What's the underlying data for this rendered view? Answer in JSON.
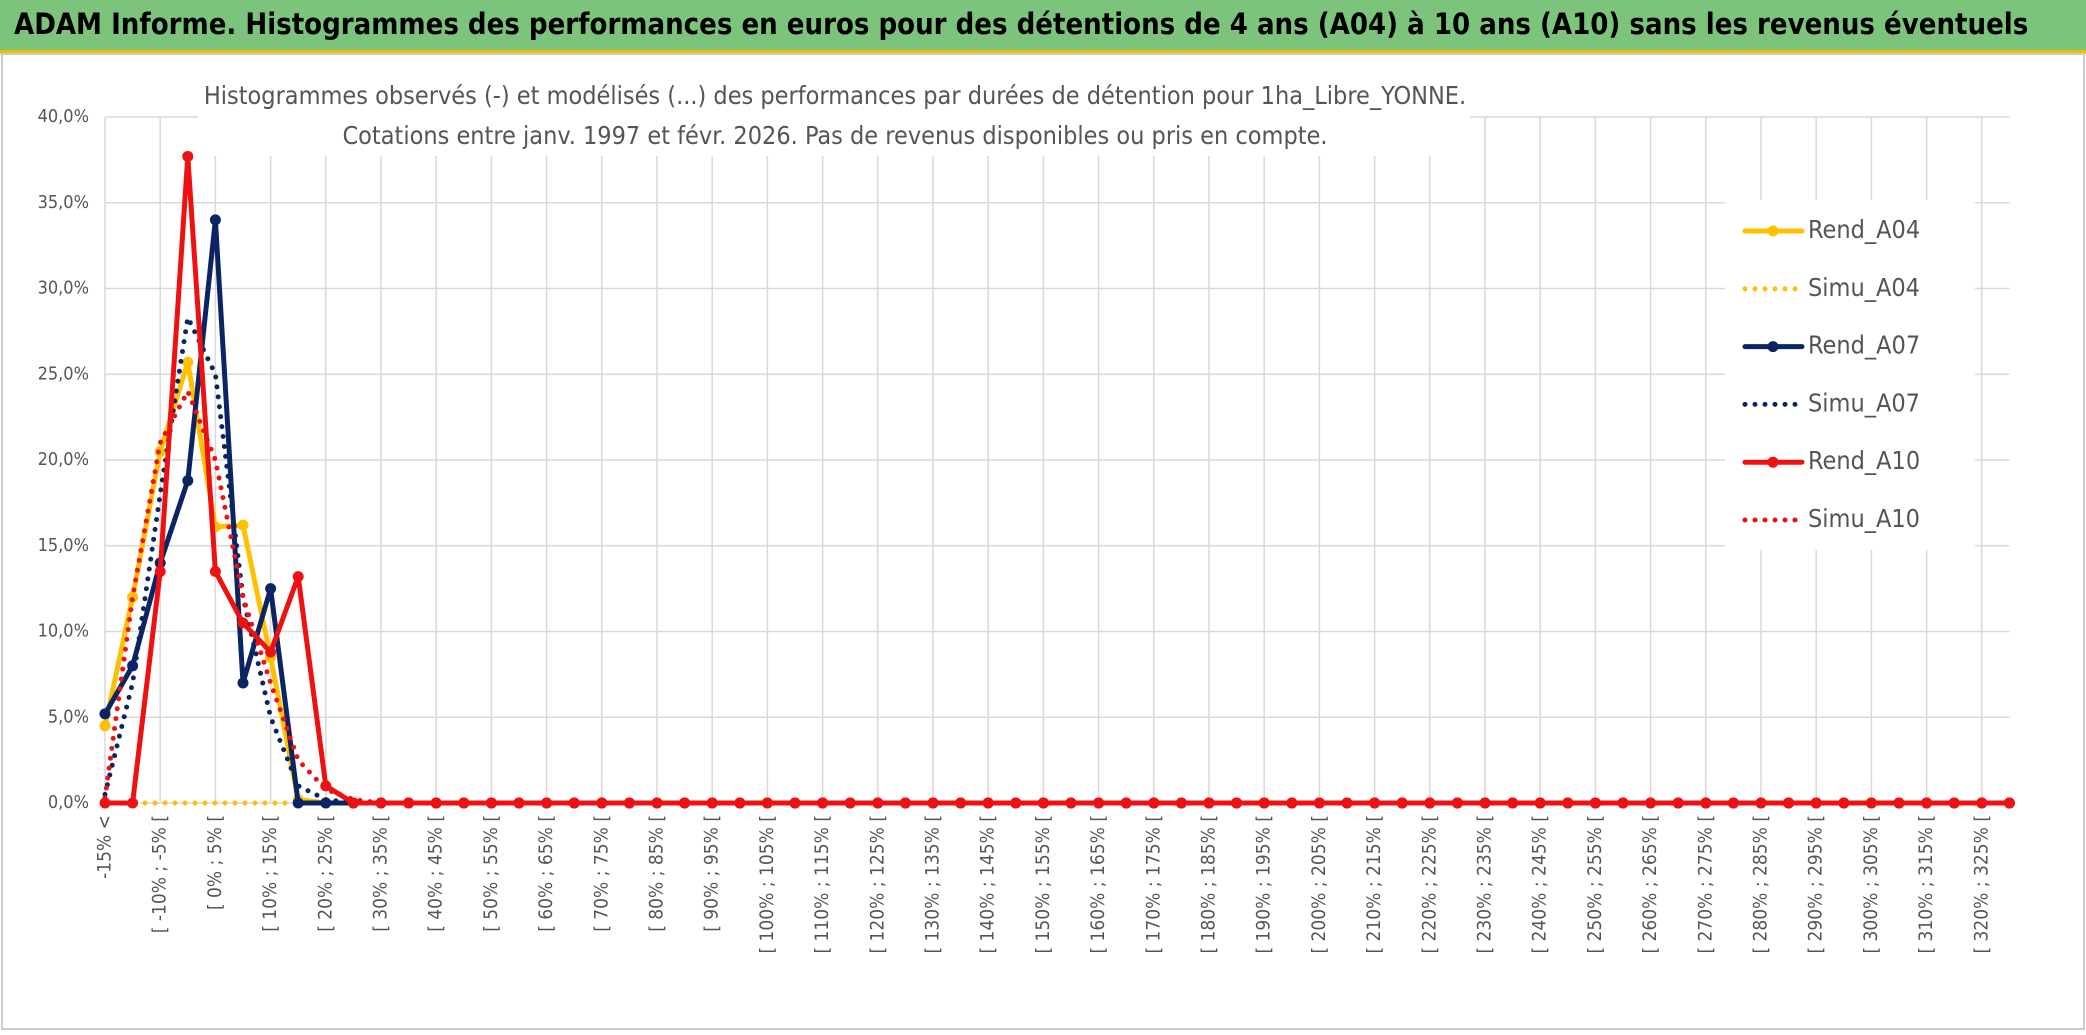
{
  "header": "ADAM Informe. Histogrammes des performances en euros pour des détentions de 4 ans (A04) à 10 ans (A10) sans les revenus éventuels",
  "chart_data": {
    "type": "line",
    "title": "Histogrammes observés (-) et modélisés (...) des performances par durées de détention pour 1ha_Libre_YONNE.",
    "subtitle": "Cotations entre janv. 1997 et févr. 2026. Pas de revenus disponibles ou pris en compte.",
    "categories": [
      "-15% <",
      null,
      "[ -10% ; -5% [",
      null,
      "[ 0% ; 5% [",
      null,
      "[ 10% ; 15% [",
      null,
      "[ 20% ; 25% [",
      null,
      "[ 30% ; 35% [",
      null,
      "[ 40% ; 45% [",
      null,
      "[ 50% ; 55% [",
      null,
      "[ 60% ; 65% [",
      null,
      "[ 70% ; 75% [",
      null,
      "[ 80% ; 85% [",
      null,
      "[ 90% ; 95% [",
      null,
      "[ 100% ; 105% [",
      null,
      "[ 110% ; 115% [",
      null,
      "[ 120% ; 125% [",
      null,
      "[ 130% ; 135% [",
      null,
      "[ 140% ; 145% [",
      null,
      "[ 150% ; 155% [",
      null,
      "[ 160% ; 165% [",
      null,
      "[ 170% ; 175% [",
      null,
      "[ 180% ; 185% [",
      null,
      "[ 190% ; 195% [",
      null,
      "[ 200% ; 205% [",
      null,
      "[ 210% ; 215% [",
      null,
      "[ 220% ; 225% [",
      null,
      "[ 230% ; 235% [",
      null,
      "[ 240% ; 245% [",
      null,
      "[ 250% ; 255% [",
      null,
      "[ 260% ; 265% [",
      null,
      "[ 270% ; 275% [",
      null,
      "[ 280% ; 285% [",
      null,
      "[ 290% ; 295% [",
      null,
      "[ 300% ; 305% [",
      null,
      "[ 310% ; 315% [",
      null,
      "[ 320% ; 325% [",
      null
    ],
    "series": [
      {
        "name": "Rend_A04",
        "color": "#ffc000",
        "style": "solid",
        "values": [
          4.5,
          12,
          20.5,
          25.7,
          16.1,
          16.2,
          8.5,
          0.2,
          0,
          0,
          0,
          0,
          0,
          0,
          0,
          0,
          0,
          0,
          0,
          0,
          0,
          0,
          0,
          0,
          0,
          0,
          0,
          0,
          0,
          0,
          0,
          0,
          0,
          0,
          0,
          0,
          0,
          0,
          0,
          0,
          0,
          0,
          0,
          0,
          0,
          0,
          0,
          0,
          0,
          0,
          0,
          0,
          0,
          0,
          0,
          0,
          0,
          0,
          0,
          0,
          0,
          0,
          0,
          0,
          0,
          0,
          0,
          0,
          0,
          0
        ]
      },
      {
        "name": "Simu_A04",
        "color": "#ffc000",
        "style": "dotted",
        "values": [
          0,
          0,
          0,
          0,
          0,
          0,
          0,
          0,
          0,
          0,
          0,
          0,
          0,
          0,
          0,
          0,
          0,
          0,
          0,
          0,
          0,
          0,
          0,
          0,
          0,
          0,
          0,
          0,
          0,
          0,
          0,
          0,
          0,
          0,
          0,
          0,
          0,
          0,
          0,
          0,
          0,
          0,
          0,
          0,
          0,
          0,
          0,
          0,
          0,
          0,
          0,
          0,
          0,
          0,
          0,
          0,
          0,
          0,
          0,
          0,
          0,
          0,
          0,
          0,
          0,
          0,
          0,
          0,
          0,
          0
        ]
      },
      {
        "name": "Rend_A07",
        "color": "#0b2463",
        "style": "solid",
        "values": [
          5.2,
          8,
          14,
          18.8,
          34,
          7,
          12.5,
          0,
          0,
          0,
          0,
          0,
          0,
          0,
          0,
          0,
          0,
          0,
          0,
          0,
          0,
          0,
          0,
          0,
          0,
          0,
          0,
          0,
          0,
          0,
          0,
          0,
          0,
          0,
          0,
          0,
          0,
          0,
          0,
          0,
          0,
          0,
          0,
          0,
          0,
          0,
          0,
          0,
          0,
          0,
          0,
          0,
          0,
          0,
          0,
          0,
          0,
          0,
          0,
          0,
          0,
          0,
          0,
          0,
          0,
          0,
          0,
          0,
          0,
          0
        ]
      },
      {
        "name": "Simu_A07",
        "color": "#0b2463",
        "style": "dotted",
        "values": [
          0.5,
          7,
          18,
          28.3,
          25,
          12,
          5,
          1,
          0.2,
          0,
          0,
          0,
          0,
          0,
          0,
          0,
          0,
          0,
          0,
          0,
          0,
          0,
          0,
          0,
          0,
          0,
          0,
          0,
          0,
          0,
          0,
          0,
          0,
          0,
          0,
          0,
          0,
          0,
          0,
          0,
          0,
          0,
          0,
          0,
          0,
          0,
          0,
          0,
          0,
          0,
          0,
          0,
          0,
          0,
          0,
          0,
          0,
          0,
          0,
          0,
          0,
          0,
          0,
          0,
          0,
          0,
          0,
          0,
          0,
          0
        ]
      },
      {
        "name": "Rend_A10",
        "color": "#ee1111",
        "style": "solid",
        "values": [
          0,
          0,
          13.5,
          37.7,
          13.5,
          10.5,
          8.8,
          13.2,
          1,
          0,
          0,
          0,
          0,
          0,
          0,
          0,
          0,
          0,
          0,
          0,
          0,
          0,
          0,
          0,
          0,
          0,
          0,
          0,
          0,
          0,
          0,
          0,
          0,
          0,
          0,
          0,
          0,
          0,
          0,
          0,
          0,
          0,
          0,
          0,
          0,
          0,
          0,
          0,
          0,
          0,
          0,
          0,
          0,
          0,
          0,
          0,
          0,
          0,
          0,
          0,
          0,
          0,
          0,
          0,
          0,
          0,
          0,
          0,
          0,
          0
        ]
      },
      {
        "name": "Simu_A10",
        "color": "#ee1111",
        "style": "dotted",
        "values": [
          0.3,
          12,
          21,
          24,
          20,
          12,
          7,
          2.5,
          0.8,
          0.2,
          0,
          0,
          0,
          0,
          0,
          0,
          0,
          0,
          0,
          0,
          0,
          0,
          0,
          0,
          0,
          0,
          0,
          0,
          0,
          0,
          0,
          0,
          0,
          0,
          0,
          0,
          0,
          0,
          0,
          0,
          0,
          0,
          0,
          0,
          0,
          0,
          0,
          0,
          0,
          0,
          0,
          0,
          0,
          0,
          0,
          0,
          0,
          0,
          0,
          0,
          0,
          0,
          0,
          0,
          0,
          0,
          0,
          0,
          0,
          0
        ]
      }
    ],
    "ylim": [
      0,
      40
    ],
    "yticks": [
      {
        "value": 0,
        "label": "0,0%"
      },
      {
        "value": 5,
        "label": "5,0%"
      },
      {
        "value": 10,
        "label": "10,0%"
      },
      {
        "value": 15,
        "label": "15,0%"
      },
      {
        "value": 20,
        "label": "20,0%"
      },
      {
        "value": 25,
        "label": "25,0%"
      },
      {
        "value": 30,
        "label": "30,0%"
      },
      {
        "value": 35,
        "label": "35,0%"
      },
      {
        "value": 40,
        "label": "40,0%"
      }
    ],
    "grid": true,
    "legend": "right"
  }
}
